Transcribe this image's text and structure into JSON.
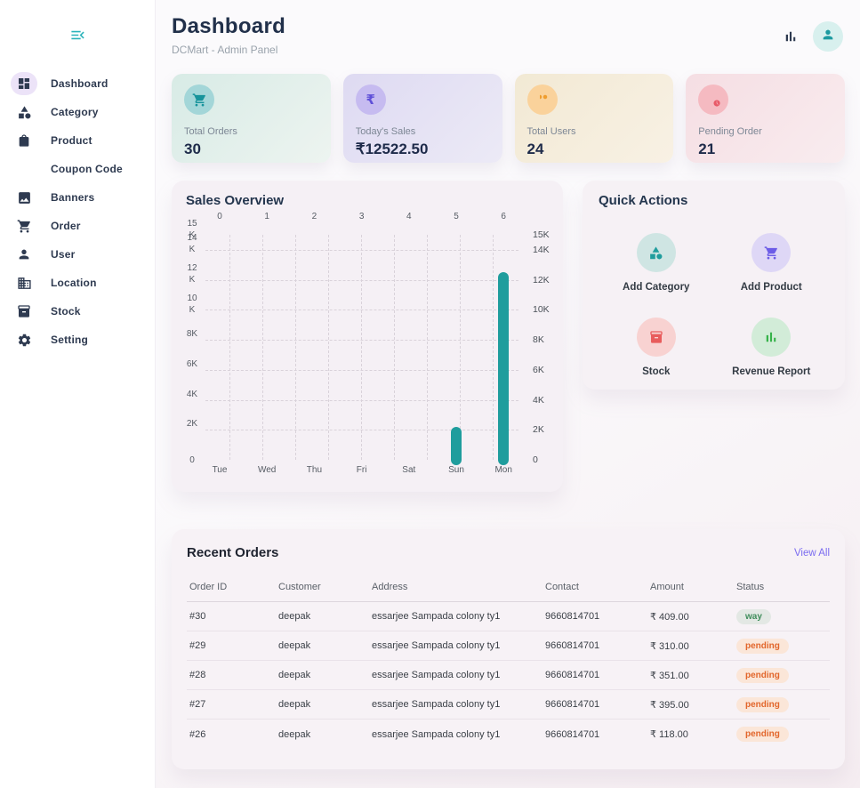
{
  "sidebar": {
    "toggle_icon": "menu-open-icon",
    "items": [
      {
        "label": "Dashboard",
        "icon": "dashboard-icon",
        "active": true
      },
      {
        "label": "Category",
        "icon": "category-icon",
        "active": false
      },
      {
        "label": "Product",
        "icon": "product-icon",
        "active": false
      },
      {
        "label": "Coupon Code",
        "icon": "coupon-icon",
        "active": false
      },
      {
        "label": "Banners",
        "icon": "banners-icon",
        "active": false
      },
      {
        "label": "Order",
        "icon": "cart-icon",
        "active": false
      },
      {
        "label": "User",
        "icon": "user-icon",
        "active": false
      },
      {
        "label": "Location",
        "icon": "location-icon",
        "active": false
      },
      {
        "label": "Stock",
        "icon": "stock-icon",
        "active": false
      },
      {
        "label": "Setting",
        "icon": "settings-icon",
        "active": false
      }
    ]
  },
  "header": {
    "title": "Dashboard",
    "subtitle": "DCMart - Admin Panel",
    "action_icons": [
      "bar-chart-icon",
      "user-avatar-icon"
    ],
    "avatar_bg": "#d8f0ee",
    "avatar_icon_color": "#1d9aa0"
  },
  "stats": [
    {
      "label": "Total Orders",
      "value": "30",
      "icon": "cart-icon",
      "card_bg_from": "#d8ebe6",
      "card_bg_to": "#edf4f0",
      "circle_bg": "#a3d6d8",
      "icon_color": "#16939b"
    },
    {
      "label": "Today's Sales",
      "value": "₹12522.50",
      "icon": "rupee-icon",
      "card_bg_from": "#dedaf2",
      "card_bg_to": "#eceaf6",
      "circle_bg": "#c6bbf0",
      "icon_color": "#5f4fd8"
    },
    {
      "label": "Total Users",
      "value": "24",
      "icon": "users-icon",
      "card_bg_from": "#f2e9d4",
      "card_bg_to": "#f8f1e4",
      "circle_bg": "#fad29b",
      "icon_color": "#ef9d2f"
    },
    {
      "label": "Pending Order",
      "value": "21",
      "icon": "pending-icon",
      "card_bg_from": "#f5dee3",
      "card_bg_to": "#f9ecef",
      "circle_bg": "#f5bac1",
      "icon_color": "#e85a68"
    }
  ],
  "sales_overview": {
    "title": "Sales Overview",
    "chart_data": {
      "type": "bar",
      "title": "Sales Overview",
      "categories": [
        "Tue",
        "Wed",
        "Thu",
        "Fri",
        "Sat",
        "Sun",
        "Mon"
      ],
      "values": [
        0,
        0,
        0,
        0,
        0,
        2200,
        12522.5
      ],
      "top_axis_labels": [
        "0",
        "1",
        "2",
        "3",
        "4",
        "5",
        "6"
      ],
      "y_ticks": [
        "15K",
        "14K",
        "12K",
        "10K",
        "8K",
        "6K",
        "4K",
        "2K",
        "0"
      ],
      "y_tick_values": [
        15000,
        14000,
        12000,
        10000,
        8000,
        6000,
        4000,
        2000,
        0
      ],
      "ylim": [
        0,
        15000
      ],
      "bar_color": "#1f9d9d",
      "grid": "dashed",
      "legend": "none"
    }
  },
  "quick_actions": {
    "title": "Quick Actions",
    "actions": [
      {
        "label": "Add Category",
        "icon": "category-icon",
        "circle_bg": "#cfe5e3",
        "icon_color": "#1f9d9d"
      },
      {
        "label": "Add Product",
        "icon": "cart-icon",
        "circle_bg": "#ded7f6",
        "icon_color": "#6c5ce7"
      },
      {
        "label": "Stock",
        "icon": "stock-icon",
        "circle_bg": "#f8d2d1",
        "icon_color": "#e85c5c"
      },
      {
        "label": "Revenue Report",
        "icon": "bar-chart-icon",
        "circle_bg": "#d2ecd8",
        "icon_color": "#36b24a"
      }
    ]
  },
  "recent_orders": {
    "title": "Recent Orders",
    "view_all_label": "View All",
    "columns": [
      "Order ID",
      "Customer",
      "Address",
      "Contact",
      "Amount",
      "Status"
    ],
    "rows": [
      {
        "order_id": "#30",
        "customer": "deepak",
        "address": "essarjee Sampada colony ty1",
        "contact": "9660814701",
        "amount": "₹ 409.00",
        "status": "way",
        "status_color": "#3f8d5b",
        "status_bg": "#e3e8e4"
      },
      {
        "order_id": "#29",
        "customer": "deepak",
        "address": "essarjee Sampada colony ty1",
        "contact": "9660814701",
        "amount": "₹ 310.00",
        "status": "pending",
        "status_color": "#e2662b",
        "status_bg": "#fbe6d8"
      },
      {
        "order_id": "#28",
        "customer": "deepak",
        "address": "essarjee Sampada colony ty1",
        "contact": "9660814701",
        "amount": "₹ 351.00",
        "status": "pending",
        "status_color": "#e2662b",
        "status_bg": "#fbe6d8"
      },
      {
        "order_id": "#27",
        "customer": "deepak",
        "address": "essarjee Sampada colony ty1",
        "contact": "9660814701",
        "amount": "₹ 395.00",
        "status": "pending",
        "status_color": "#e2662b",
        "status_bg": "#fbe6d8"
      },
      {
        "order_id": "#26",
        "customer": "deepak",
        "address": "essarjee Sampada colony ty1",
        "contact": "9660814701",
        "amount": "₹ 118.00",
        "status": "pending",
        "status_color": "#e2662b",
        "status_bg": "#fbe6d8"
      }
    ]
  }
}
